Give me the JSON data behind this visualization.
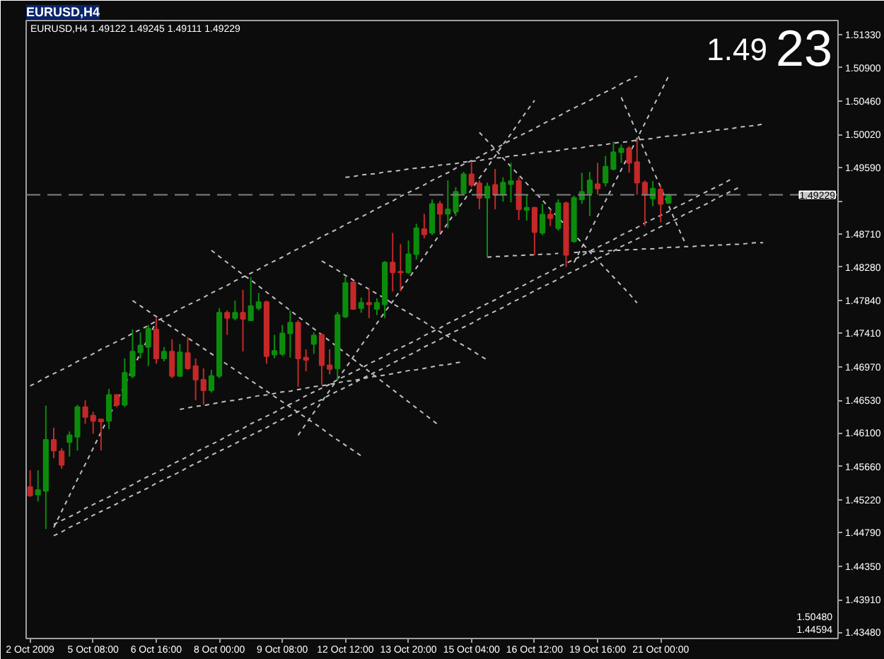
{
  "chart_data": {
    "type": "candlestick",
    "title": "EURUSD,H4",
    "subtitle": "EURUSD,H4 1.49122 1.49245 1.49111 1.49229",
    "annotations": [
      "1.49",
      "23",
      "1.50480",
      "1.44594"
    ],
    "categories": [
      "2 Oct 2009",
      null,
      null,
      null,
      null,
      null,
      null,
      null,
      "5 Oct 08:00",
      null,
      null,
      null,
      null,
      null,
      null,
      null,
      "6 Oct 16:00",
      null,
      null,
      null,
      null,
      null,
      null,
      null,
      "8 Oct 00:00",
      null,
      null,
      null,
      null,
      null,
      null,
      null,
      "9 Oct 08:00",
      null,
      null,
      null,
      null,
      null,
      null,
      null,
      "12 Oct 12:00",
      null,
      null,
      null,
      null,
      null,
      null,
      null,
      "13 Oct 20:00",
      null,
      null,
      null,
      null,
      null,
      null,
      null,
      "15 Oct 04:00",
      null,
      null,
      null,
      null,
      null,
      null,
      null,
      "16 Oct 12:00",
      null,
      null,
      null,
      null,
      null,
      null,
      null,
      "19 Oct 16:00",
      null,
      null,
      null,
      null,
      null,
      null,
      null,
      "21 Oct 00:00",
      null,
      null,
      null,
      null,
      null,
      null,
      null,
      null,
      null,
      null,
      null,
      null,
      null,
      null,
      null,
      null,
      null,
      null,
      null,
      null,
      null,
      null
    ],
    "ohlc": [
      [
        1.4539,
        1.4561,
        1.4526,
        1.4528
      ],
      [
        1.4529,
        1.4561,
        1.452,
        1.4535
      ],
      [
        1.4534,
        1.4646,
        1.4484,
        1.4601
      ],
      [
        1.4601,
        1.4617,
        1.4577,
        1.4587
      ],
      [
        1.4586,
        1.459,
        1.4563,
        1.4568
      ],
      [
        1.4598,
        1.4612,
        1.4579,
        1.4607
      ],
      [
        1.4605,
        1.4647,
        1.4587,
        1.4644
      ],
      [
        1.4644,
        1.4653,
        1.4622,
        1.4631
      ],
      [
        1.4633,
        1.4638,
        1.4609,
        1.4626
      ],
      [
        1.4628,
        1.4629,
        1.4587,
        1.4625
      ],
      [
        1.4626,
        1.4668,
        1.4615,
        1.466
      ],
      [
        1.466,
        1.4661,
        1.4644,
        1.4647
      ],
      [
        1.4647,
        1.4708,
        1.4644,
        1.4689
      ],
      [
        1.4685,
        1.4746,
        1.4682,
        1.4717
      ],
      [
        1.4716,
        1.4742,
        1.4708,
        1.4725
      ],
      [
        1.4723,
        1.4752,
        1.4698,
        1.4747
      ],
      [
        1.4746,
        1.4761,
        1.4701,
        1.4708
      ],
      [
        1.4708,
        1.4723,
        1.4704,
        1.4717
      ],
      [
        1.4717,
        1.4733,
        1.4682,
        1.4685
      ],
      [
        1.4685,
        1.4727,
        1.4684,
        1.4716
      ],
      [
        1.4715,
        1.4736,
        1.4693,
        1.4695
      ],
      [
        1.4698,
        1.4708,
        1.4653,
        1.468
      ],
      [
        1.468,
        1.4695,
        1.4647,
        1.4666
      ],
      [
        1.4666,
        1.4693,
        1.4663,
        1.4685
      ],
      [
        1.4685,
        1.4774,
        1.4682,
        1.4768
      ],
      [
        1.4768,
        1.4771,
        1.4739,
        1.4761
      ],
      [
        1.4761,
        1.4784,
        1.4758,
        1.4768
      ],
      [
        1.4768,
        1.4798,
        1.4717,
        1.476
      ],
      [
        1.4758,
        1.4815,
        1.4757,
        1.4777
      ],
      [
        1.4774,
        1.4794,
        1.4771,
        1.4782
      ],
      [
        1.4782,
        1.4784,
        1.4701,
        1.4711
      ],
      [
        1.4713,
        1.4739,
        1.4708,
        1.4718
      ],
      [
        1.4714,
        1.4752,
        1.4711,
        1.4741
      ],
      [
        1.4741,
        1.4771,
        1.4709,
        1.4755
      ],
      [
        1.4755,
        1.4758,
        1.4671,
        1.4708
      ],
      [
        1.4709,
        1.472,
        1.4691,
        1.4706
      ],
      [
        1.4727,
        1.4742,
        1.4714,
        1.4738
      ],
      [
        1.4739,
        1.4741,
        1.4673,
        1.4699
      ],
      [
        1.4699,
        1.472,
        1.4687,
        1.4694
      ],
      [
        1.4695,
        1.4769,
        1.4679,
        1.4765
      ],
      [
        1.4763,
        1.4815,
        1.4761,
        1.4807
      ],
      [
        1.4808,
        1.481,
        1.4772,
        1.4773
      ],
      [
        1.4774,
        1.4788,
        1.4768,
        1.4781
      ],
      [
        1.4781,
        1.48,
        1.4761,
        1.4779
      ],
      [
        1.4773,
        1.4787,
        1.4765,
        1.4781
      ],
      [
        1.4779,
        1.4836,
        1.4761,
        1.4834
      ],
      [
        1.4834,
        1.4873,
        1.4796,
        1.4821
      ],
      [
        1.4822,
        1.4858,
        1.4796,
        1.4821
      ],
      [
        1.4821,
        1.4863,
        1.4819,
        1.4845
      ],
      [
        1.4845,
        1.4885,
        1.4838,
        1.4879
      ],
      [
        1.4878,
        1.4898,
        1.4866,
        1.4871
      ],
      [
        1.4873,
        1.4917,
        1.487,
        1.4911
      ],
      [
        1.4911,
        1.4915,
        1.4873,
        1.4898
      ],
      [
        1.4898,
        1.4942,
        1.4879,
        1.4904
      ],
      [
        1.4901,
        1.4933,
        1.4895,
        1.4927
      ],
      [
        1.4925,
        1.4953,
        1.4923,
        1.495
      ],
      [
        1.495,
        1.4966,
        1.4933,
        1.4936
      ],
      [
        1.4938,
        1.4942,
        1.4904,
        1.4919
      ],
      [
        1.4919,
        1.4939,
        1.4841,
        1.4934
      ],
      [
        1.4936,
        1.4957,
        1.4904,
        1.4923
      ],
      [
        1.4923,
        1.4946,
        1.4914,
        1.4939
      ],
      [
        1.4937,
        1.4965,
        1.4913,
        1.4941
      ],
      [
        1.4941,
        1.4946,
        1.489,
        1.4904
      ],
      [
        1.4903,
        1.4923,
        1.4889,
        1.4906
      ],
      [
        1.4906,
        1.4907,
        1.4844,
        1.4874
      ],
      [
        1.4873,
        1.4911,
        1.487,
        1.4897
      ],
      [
        1.4897,
        1.4904,
        1.4882,
        1.4892
      ],
      [
        1.4879,
        1.4917,
        1.4876,
        1.4912
      ],
      [
        1.4912,
        1.4914,
        1.4828,
        1.4844
      ],
      [
        1.4862,
        1.4922,
        1.486,
        1.4919
      ],
      [
        1.4917,
        1.4952,
        1.4911,
        1.4927
      ],
      [
        1.4925,
        1.4953,
        1.4895,
        1.4942
      ],
      [
        1.4937,
        1.4965,
        1.4923,
        1.4931
      ],
      [
        1.4939,
        1.4974,
        1.4934,
        1.496
      ],
      [
        1.4957,
        1.4993,
        1.4955,
        1.4979
      ],
      [
        1.4979,
        1.4989,
        1.4965,
        1.4984
      ],
      [
        1.4984,
        1.4987,
        1.4952,
        1.4965
      ],
      [
        1.4966,
        1.4996,
        1.4923,
        1.4939
      ],
      [
        1.4939,
        1.4942,
        1.4882,
        1.4923
      ],
      [
        1.4918,
        1.4941,
        1.4908,
        1.4931
      ],
      [
        1.493,
        1.4936,
        1.4887,
        1.4911
      ],
      [
        1.49122,
        1.49245,
        1.49111,
        1.49229
      ],
      null,
      null,
      null,
      null,
      null,
      null,
      null,
      null,
      null,
      null,
      null,
      null,
      null,
      null,
      null,
      null,
      null,
      null,
      null,
      null,
      null
    ],
    "colors": [
      "#c42828",
      "#0c8c0c",
      "#0c8c0c",
      "#c42828",
      "#c42828",
      "#0c8c0c",
      "#0c8c0c",
      "#c42828",
      "#c42828",
      "#c42828",
      "#0c8c0c",
      "#c42828",
      "#0c8c0c",
      "#0c8c0c",
      "#0c8c0c",
      "#0c8c0c",
      "#c42828",
      "#0c8c0c",
      "#c42828",
      "#0c8c0c",
      "#c42828",
      "#c42828",
      "#c42828",
      "#0c8c0c",
      "#0c8c0c",
      "#c42828",
      "#0c8c0c",
      "#c42828",
      "#0c8c0c",
      "#0c8c0c",
      "#c42828",
      "#0c8c0c",
      "#0c8c0c",
      "#0c8c0c",
      "#c42828",
      "#c42828",
      "#0c8c0c",
      "#c42828",
      "#c42828",
      "#0c8c0c",
      "#0c8c0c",
      "#c42828",
      "#0c8c0c",
      "#c42828",
      "#0c8c0c",
      "#0c8c0c",
      "#c42828",
      "#c42828",
      "#0c8c0c",
      "#0c8c0c",
      "#c42828",
      "#0c8c0c",
      "#c42828",
      "#0c8c0c",
      "#0c8c0c",
      "#0c8c0c",
      "#c42828",
      "#c42828",
      "#0c8c0c",
      "#c42828",
      "#0c8c0c",
      "#0c8c0c",
      "#c42828",
      "#0c8c0c",
      "#c42828",
      "#0c8c0c",
      "#c42828",
      "#0c8c0c",
      "#c42828",
      "#0c8c0c",
      "#0c8c0c",
      "#0c8c0c",
      "#c42828",
      "#0c8c0c",
      "#0c8c0c",
      "#0c8c0c",
      "#c42828",
      "#c42828",
      "#c42828",
      "#0c8c0c",
      "#c42828",
      "#0c8c0c",
      null,
      null,
      null,
      null,
      null,
      null,
      null,
      null,
      null,
      null,
      null,
      null,
      null,
      null,
      null,
      null,
      null,
      null,
      null,
      null,
      null
    ],
    "series": [
      {
        "type": "line",
        "color": "#c0c0c0",
        "line_style": "dotted",
        "values": [
          1.4672,
          1.4677,
          1.4683,
          1.4688,
          1.4693,
          1.4698,
          1.4704,
          1.4709,
          1.4714,
          1.472,
          1.4725,
          1.473,
          1.4735,
          1.4741,
          1.4746,
          1.4751,
          1.4757,
          1.4762,
          1.4767,
          1.4773,
          1.4778,
          1.4783,
          1.4788,
          1.4794,
          1.4799,
          1.4804,
          1.481,
          1.4815,
          1.482,
          1.4825,
          1.4831,
          1.4836,
          1.4841,
          1.4847,
          1.4852,
          1.4857,
          1.4862,
          1.4868,
          1.4873,
          1.4878,
          1.4884,
          1.4889,
          1.4894,
          1.4899,
          1.4905,
          1.491,
          1.4915,
          1.4921,
          1.4926,
          1.4931,
          1.4936,
          1.4942,
          1.4947,
          1.4952,
          1.4958,
          1.4963,
          1.4968,
          1.4973,
          1.4979,
          1.4984,
          1.4989,
          1.4995,
          1.5,
          1.5005,
          1.501,
          1.5016,
          1.5021,
          1.5026,
          1.5032,
          1.5037,
          1.5042,
          1.5047,
          1.5053,
          1.5058,
          1.5063,
          1.5069,
          1.5074,
          1.5079,
          null,
          null,
          null,
          null,
          null,
          null,
          null,
          null,
          null,
          null,
          null,
          null,
          null,
          null,
          null,
          null,
          null,
          null,
          null,
          null,
          null,
          null,
          null,
          null,
          null
        ]
      },
      {
        "type": "line",
        "color": "#c0c0c0",
        "line_style": "dotted",
        "values": [
          null,
          null,
          null,
          null,
          null,
          null,
          null,
          null,
          null,
          null,
          null,
          null,
          null,
          null,
          null,
          null,
          null,
          null,
          null,
          null,
          null,
          null,
          null,
          null,
          null,
          null,
          null,
          null,
          null,
          null,
          null,
          null,
          null,
          null,
          null,
          null,
          null,
          null,
          null,
          null,
          1.4946,
          1.4947,
          1.4949,
          1.495,
          1.4951,
          1.4953,
          1.4954,
          1.4955,
          1.4957,
          1.4958,
          1.4959,
          1.496,
          1.4962,
          1.4963,
          1.4964,
          1.4966,
          1.4967,
          1.4968,
          1.497,
          1.4971,
          1.4972,
          1.4974,
          1.4975,
          1.4976,
          1.4978,
          1.4979,
          1.498,
          1.4981,
          1.4983,
          1.4984,
          1.4985,
          1.4987,
          1.4988,
          1.4989,
          1.4991,
          1.4992,
          1.4993,
          1.4995,
          1.4996,
          1.4997,
          1.4999,
          1.5,
          1.5001,
          1.5002,
          1.5004,
          1.5005,
          1.5006,
          1.5008,
          1.5009,
          1.501,
          1.5012,
          1.5013,
          1.5014,
          1.5016,
          null,
          null,
          null,
          null,
          null,
          null,
          null,
          null,
          null
        ]
      },
      {
        "type": "line",
        "color": "#c0c0c0",
        "line_style": "dotted",
        "values": [
          null,
          null,
          null,
          1.449,
          1.4495,
          1.45,
          1.4505,
          1.4511,
          1.4516,
          1.4521,
          1.4526,
          1.4532,
          1.4537,
          1.4542,
          1.4548,
          1.4553,
          1.4558,
          1.4563,
          1.4569,
          1.4574,
          1.4579,
          1.4585,
          1.459,
          1.4595,
          1.46,
          1.4606,
          1.4611,
          1.4616,
          1.4622,
          1.4627,
          1.4632,
          1.4637,
          1.4643,
          1.4648,
          1.4653,
          1.4659,
          1.4664,
          1.4669,
          1.4674,
          1.468,
          1.4685,
          1.469,
          1.4695,
          1.4701,
          1.4706,
          1.4711,
          1.4717,
          1.4722,
          1.4727,
          1.4732,
          1.4738,
          1.4743,
          1.4748,
          1.4754,
          1.4759,
          1.4764,
          1.4769,
          1.4775,
          1.478,
          1.4785,
          1.4791,
          1.4796,
          1.4801,
          1.4806,
          1.4812,
          1.4817,
          1.4822,
          1.4828,
          1.4833,
          1.4838,
          1.4843,
          1.4849,
          1.4854,
          1.4859,
          1.4864,
          1.487,
          1.4875,
          1.488,
          1.4886,
          1.4891,
          1.4896,
          1.4901,
          1.4907,
          1.4912,
          1.4917,
          1.4923,
          1.4928,
          1.4933,
          1.4938,
          1.4944,
          null,
          null,
          null,
          null,
          null,
          null,
          null,
          null,
          null,
          null,
          null,
          null,
          null
        ]
      },
      {
        "type": "line",
        "color": "#c0c0c0",
        "line_style": "dotted",
        "values": [
          null,
          null,
          null,
          1.4475,
          1.448,
          1.4486,
          1.4491,
          1.4496,
          1.4502,
          1.4507,
          1.4512,
          1.4517,
          1.4523,
          1.4528,
          1.4533,
          1.4538,
          1.4544,
          1.4549,
          1.4554,
          1.4559,
          1.4565,
          1.457,
          1.4575,
          1.4581,
          1.4586,
          1.4591,
          1.4596,
          1.4602,
          1.4607,
          1.4612,
          1.4617,
          1.4623,
          1.4628,
          1.4633,
          1.4638,
          1.4644,
          1.4649,
          1.4654,
          1.466,
          1.4665,
          1.467,
          1.4675,
          1.4681,
          1.4686,
          1.4691,
          1.4696,
          1.4702,
          1.4707,
          1.4712,
          1.4717,
          1.4723,
          1.4728,
          1.4733,
          1.4739,
          1.4744,
          1.4749,
          1.4754,
          1.476,
          1.4765,
          1.477,
          1.4775,
          1.4781,
          1.4786,
          1.4791,
          1.4797,
          1.4802,
          1.4807,
          1.4812,
          1.4818,
          1.4823,
          1.4828,
          1.4833,
          1.4839,
          1.4844,
          1.4849,
          1.4855,
          1.486,
          1.4865,
          1.487,
          1.4876,
          1.4881,
          1.4886,
          1.4891,
          1.4897,
          1.4902,
          1.4907,
          1.4912,
          1.4918,
          1.4923,
          1.4928,
          1.4933,
          null,
          null,
          null,
          null,
          null,
          null,
          null,
          null,
          null,
          null,
          null,
          null
        ]
      },
      {
        "type": "line",
        "color": "#c0c0c0",
        "line_style": "dotted",
        "values": [
          null,
          null,
          null,
          1.4486,
          1.4507,
          1.4528,
          1.4549,
          1.4569,
          1.459,
          1.4611,
          1.4632,
          1.4652,
          1.4673,
          1.4694,
          1.4715,
          1.4735,
          1.4756,
          null,
          null,
          null,
          null,
          null,
          null,
          null,
          null,
          null,
          null,
          null,
          null,
          null,
          null,
          null,
          null,
          null,
          null,
          null,
          null,
          null,
          null,
          null,
          null,
          null,
          null,
          null,
          null,
          null,
          null,
          null,
          null,
          null,
          null,
          null,
          null,
          null,
          null,
          null,
          null,
          null,
          null,
          null,
          null,
          null,
          null,
          null,
          null,
          null,
          null,
          null,
          null,
          null,
          null,
          null,
          null,
          null,
          null,
          null,
          null,
          null,
          null,
          null,
          null,
          null,
          null,
          null,
          null,
          null,
          null,
          null,
          null,
          null,
          null,
          null,
          null,
          null,
          null,
          null,
          null,
          null,
          null,
          null,
          null,
          null,
          null
        ]
      },
      {
        "type": "line",
        "color": "#c0c0c0",
        "line_style": "dotted",
        "values": [
          null,
          null,
          null,
          null,
          null,
          null,
          null,
          null,
          null,
          null,
          null,
          null,
          null,
          1.4784,
          1.4777,
          1.477,
          1.4763,
          1.4756,
          1.4749,
          1.4742,
          1.4735,
          1.4728,
          1.4721,
          1.4714,
          1.4707,
          1.47,
          1.4693,
          1.4686,
          1.4679,
          1.4672,
          1.4665,
          1.4658,
          1.4651,
          1.4644,
          1.4637,
          1.463,
          1.4623,
          1.4616,
          1.4608,
          1.4601,
          1.4594,
          1.4587,
          1.458,
          null,
          null,
          null,
          null,
          null,
          null,
          null,
          null,
          null,
          null,
          null,
          null,
          null,
          null,
          null,
          null,
          null,
          null,
          null,
          null,
          null,
          null,
          null,
          null,
          null,
          null,
          null,
          null,
          null,
          null,
          null,
          null,
          null,
          null,
          null,
          null,
          null,
          null,
          null,
          null,
          null,
          null,
          null,
          null,
          null,
          null,
          null,
          null,
          null,
          null,
          null,
          null,
          null,
          null,
          null,
          null,
          null,
          null,
          null,
          null
        ]
      },
      {
        "type": "line",
        "color": "#c0c0c0",
        "line_style": "dotted",
        "values": [
          null,
          null,
          null,
          null,
          null,
          null,
          null,
          null,
          null,
          null,
          null,
          null,
          null,
          null,
          null,
          null,
          null,
          null,
          null,
          null,
          null,
          null,
          null,
          null,
          null,
          null,
          null,
          null,
          null,
          null,
          null,
          null,
          null,
          null,
          null,
          null,
          null,
          1.4836,
          1.483,
          1.4824,
          1.4817,
          1.4811,
          1.4805,
          1.4799,
          1.4793,
          1.4787,
          1.478,
          1.4774,
          1.4768,
          1.4762,
          1.4756,
          1.4749,
          1.4743,
          1.4737,
          1.4731,
          1.4725,
          1.4719,
          1.4712,
          1.4706,
          null,
          null,
          null,
          null,
          null,
          null,
          null,
          null,
          null,
          null,
          null,
          null,
          null,
          null,
          null,
          null,
          null,
          null,
          null,
          null,
          null,
          null,
          null,
          null,
          null,
          null,
          null,
          null,
          null,
          null,
          null,
          null,
          null,
          null,
          null,
          null,
          null,
          null,
          null,
          null,
          null,
          null,
          null,
          null
        ]
      },
      {
        "type": "line",
        "color": "#c0c0c0",
        "line_style": "dotted",
        "values": [
          null,
          null,
          null,
          null,
          null,
          null,
          null,
          null,
          null,
          null,
          null,
          null,
          null,
          null,
          null,
          null,
          null,
          null,
          null,
          null,
          null,
          null,
          null,
          null,
          null,
          null,
          null,
          null,
          null,
          null,
          null,
          null,
          null,
          null,
          null,
          null,
          null,
          null,
          null,
          null,
          null,
          null,
          null,
          null,
          null,
          null,
          null,
          null,
          null,
          null,
          null,
          null,
          null,
          null,
          null,
          null,
          null,
          1.5005,
          1.4994,
          1.4983,
          1.4971,
          1.496,
          1.4949,
          1.4938,
          1.4927,
          1.4916,
          1.4904,
          1.4893,
          1.4882,
          1.4871,
          1.486,
          1.4848,
          1.4837,
          1.4826,
          1.4815,
          1.4804,
          1.4793,
          1.4781,
          null,
          null,
          null,
          null,
          null,
          null,
          null,
          null,
          null,
          null,
          null,
          null,
          null,
          null,
          null,
          null,
          null,
          null,
          null,
          null,
          null,
          null,
          null,
          null,
          null
        ]
      },
      {
        "type": "line",
        "color": "#c0c0c0",
        "line_style": "dotted",
        "values": [
          null,
          null,
          null,
          null,
          null,
          null,
          null,
          null,
          null,
          null,
          null,
          null,
          null,
          null,
          null,
          null,
          null,
          null,
          null,
          null,
          null,
          null,
          null,
          null,
          null,
          null,
          null,
          null,
          null,
          null,
          null,
          null,
          null,
          null,
          null,
          null,
          null,
          null,
          null,
          null,
          null,
          null,
          null,
          null,
          null,
          null,
          null,
          null,
          null,
          null,
          null,
          null,
          null,
          null,
          null,
          null,
          null,
          null,
          1.4841,
          1.4842,
          1.4842,
          1.4843,
          1.4843,
          1.4844,
          1.4844,
          1.4845,
          1.4845,
          1.4846,
          null,
          1.4847,
          1.4848,
          1.4848,
          1.4849,
          1.4849,
          1.485,
          1.485,
          1.4851,
          1.4851,
          1.4852,
          1.4852,
          1.4853,
          1.4854,
          1.4854,
          1.4855,
          1.4855,
          1.4856,
          1.4856,
          1.4857,
          1.4857,
          1.4858,
          1.4858,
          1.4859,
          1.486,
          1.486,
          null,
          null,
          null,
          null,
          null,
          null,
          null,
          null,
          null
        ]
      },
      {
        "type": "line",
        "color": "#c0c0c0",
        "line_style": "dotted",
        "values": [
          null,
          null,
          null,
          null,
          null,
          null,
          null,
          null,
          null,
          null,
          null,
          null,
          null,
          null,
          null,
          null,
          null,
          null,
          null,
          1.4641,
          1.4643,
          1.4645,
          1.4646,
          1.4648,
          1.465,
          1.4652,
          1.4653,
          1.4655,
          1.4657,
          1.4659,
          1.466,
          1.4662,
          1.4664,
          1.4665,
          1.4667,
          1.4669,
          1.4671,
          1.4672,
          1.4674,
          1.4676,
          1.4678,
          1.4679,
          1.4681,
          1.4683,
          1.4685,
          1.4686,
          1.4688,
          1.469,
          1.4692,
          1.4693,
          1.4695,
          1.4697,
          1.4699,
          1.47,
          1.4702,
          1.4704,
          null,
          null,
          null,
          null,
          null,
          null,
          null,
          null,
          null,
          null,
          null,
          null,
          null,
          null,
          null,
          null,
          null,
          null,
          null,
          null,
          null,
          null,
          null,
          null,
          null,
          null,
          null,
          null,
          null,
          null,
          null,
          null,
          null,
          null,
          null,
          null,
          null,
          null,
          null,
          null,
          null,
          null,
          null,
          null,
          null,
          null,
          null
        ]
      },
      {
        "type": "line",
        "color": "#c0c0c0",
        "line_style": "dotted",
        "values": [
          null,
          null,
          null,
          null,
          null,
          null,
          null,
          null,
          null,
          null,
          null,
          null,
          null,
          null,
          null,
          null,
          null,
          null,
          null,
          null,
          null,
          null,
          null,
          null,
          null,
          null,
          null,
          null,
          null,
          null,
          null,
          null,
          null,
          null,
          null,
          null,
          null,
          null,
          null,
          null,
          null,
          null,
          null,
          null,
          null,
          null,
          null,
          null,
          null,
          null,
          null,
          null,
          null,
          null,
          null,
          null,
          null,
          null,
          null,
          null,
          null,
          null,
          null,
          null,
          null,
          null,
          null,
          null,
          null,
          1.4834,
          1.4854,
          1.4874,
          1.4895,
          1.4915,
          1.4936,
          1.4956,
          1.4976,
          1.4997,
          1.5017,
          1.5038,
          1.5058,
          1.5079,
          null,
          null,
          null,
          null,
          null,
          null,
          null,
          null,
          null,
          null,
          null,
          null,
          null,
          null,
          null,
          null,
          null,
          null,
          null,
          null,
          null
        ]
      },
      {
        "type": "line",
        "color": "#c0c0c0",
        "line_style": "dotted",
        "values": [
          null,
          null,
          null,
          null,
          null,
          null,
          null,
          null,
          null,
          null,
          null,
          null,
          null,
          null,
          null,
          null,
          null,
          null,
          null,
          null,
          null,
          null,
          null,
          null,
          null,
          null,
          null,
          null,
          null,
          null,
          null,
          null,
          null,
          null,
          null,
          null,
          null,
          null,
          null,
          null,
          null,
          null,
          null,
          null,
          null,
          null,
          null,
          null,
          null,
          null,
          null,
          null,
          null,
          null,
          null,
          null,
          null,
          null,
          null,
          null,
          null,
          null,
          null,
          null,
          null,
          null,
          null,
          null,
          null,
          null,
          null,
          null,
          null,
          null,
          null,
          1.5051,
          1.5028,
          1.5004,
          1.498,
          1.4956,
          1.4933,
          1.4909,
          1.4885,
          1.4862,
          null,
          null,
          null,
          null,
          null,
          null,
          null,
          null,
          null,
          null,
          null,
          null,
          null,
          null,
          null,
          null,
          null,
          null,
          null
        ]
      },
      {
        "type": "line",
        "color": "#c0c0c0",
        "line_style": "dotted",
        "values": [
          null,
          null,
          null,
          null,
          null,
          null,
          null,
          null,
          null,
          null,
          null,
          null,
          null,
          null,
          null,
          null,
          null,
          null,
          null,
          null,
          null,
          null,
          null,
          1.485,
          1.4842,
          1.4834,
          1.4826,
          1.4818,
          1.4811,
          1.4803,
          1.4795,
          1.4787,
          1.4779,
          1.4771,
          1.4763,
          1.4755,
          1.4747,
          1.4739,
          1.4731,
          1.4723,
          1.4715,
          1.4707,
          1.4699,
          1.4691,
          1.4683,
          1.4675,
          1.4667,
          1.4659,
          1.4651,
          1.4643,
          1.4635,
          1.4627,
          1.4619,
          null,
          null,
          null,
          null,
          null,
          null,
          null,
          null,
          null,
          null,
          null,
          null,
          null,
          null,
          null,
          null,
          null,
          null,
          null,
          null,
          null,
          null,
          null,
          null,
          null,
          null,
          null,
          null,
          null,
          null,
          null,
          null,
          null,
          null,
          null,
          null,
          null,
          null,
          null,
          null,
          null,
          null,
          null,
          null,
          null,
          null,
          null,
          null,
          null,
          null
        ]
      },
      {
        "type": "line",
        "color": "#c0c0c0",
        "line_style": "dotted",
        "values": [
          null,
          null,
          null,
          null,
          null,
          null,
          null,
          null,
          null,
          null,
          null,
          null,
          null,
          null,
          null,
          null,
          null,
          null,
          null,
          null,
          null,
          null,
          null,
          null,
          null,
          null,
          null,
          null,
          null,
          null,
          null,
          null,
          null,
          null,
          1.4607,
          1.4622,
          1.4637,
          1.4651,
          1.4666,
          1.4681,
          1.4695,
          1.471,
          1.4725,
          1.4739,
          1.4754,
          1.4769,
          1.4783,
          1.4798,
          1.4813,
          1.4827,
          1.4842,
          1.4857,
          1.4871,
          1.4886,
          1.4901,
          1.4915,
          1.493,
          1.4945,
          1.4959,
          1.4974,
          1.4989,
          1.5003,
          1.5018,
          1.5033,
          1.5047,
          null,
          null,
          null,
          null,
          null,
          null,
          null,
          null,
          null,
          null,
          null,
          null,
          null,
          null,
          null,
          null,
          null,
          null,
          null,
          null,
          null,
          null,
          null,
          null,
          null,
          null,
          null,
          null,
          null,
          null,
          null,
          null,
          null,
          null,
          null,
          null,
          null,
          null
        ]
      }
    ],
    "ref_lines": [
      {
        "axis": "y",
        "value": 1.49229,
        "label": "1.49229",
        "color": "#808080",
        "line_style": "dashed"
      }
    ],
    "ylim": [
      1.434,
      1.5152
    ],
    "yticks": [
      {
        "value": 1.5133,
        "label": "1.51330"
      },
      {
        "value": 1.509,
        "label": "1.50900"
      },
      {
        "value": 1.5046,
        "label": "1.50460"
      },
      {
        "value": 1.5002,
        "label": "1.50020"
      },
      {
        "value": 1.4959,
        "label": "1.49590"
      },
      {
        "value": 1.4915,
        "label": null
      },
      {
        "value": 1.4871,
        "label": "1.48710"
      },
      {
        "value": 1.4828,
        "label": "1.48280"
      },
      {
        "value": 1.4784,
        "label": "1.47840"
      },
      {
        "value": 1.4741,
        "label": "1.47410"
      },
      {
        "value": 1.4697,
        "label": "1.46970"
      },
      {
        "value": 1.4653,
        "label": "1.46530"
      },
      {
        "value": 1.461,
        "label": "1.46100"
      },
      {
        "value": 1.4566,
        "label": "1.45660"
      },
      {
        "value": 1.4522,
        "label": "1.45220"
      },
      {
        "value": 1.4479,
        "label": "1.44790"
      },
      {
        "value": 1.4435,
        "label": "1.44350"
      },
      {
        "value": 1.4391,
        "label": "1.43910"
      },
      {
        "value": 1.4348,
        "label": "1.43480"
      }
    ]
  }
}
